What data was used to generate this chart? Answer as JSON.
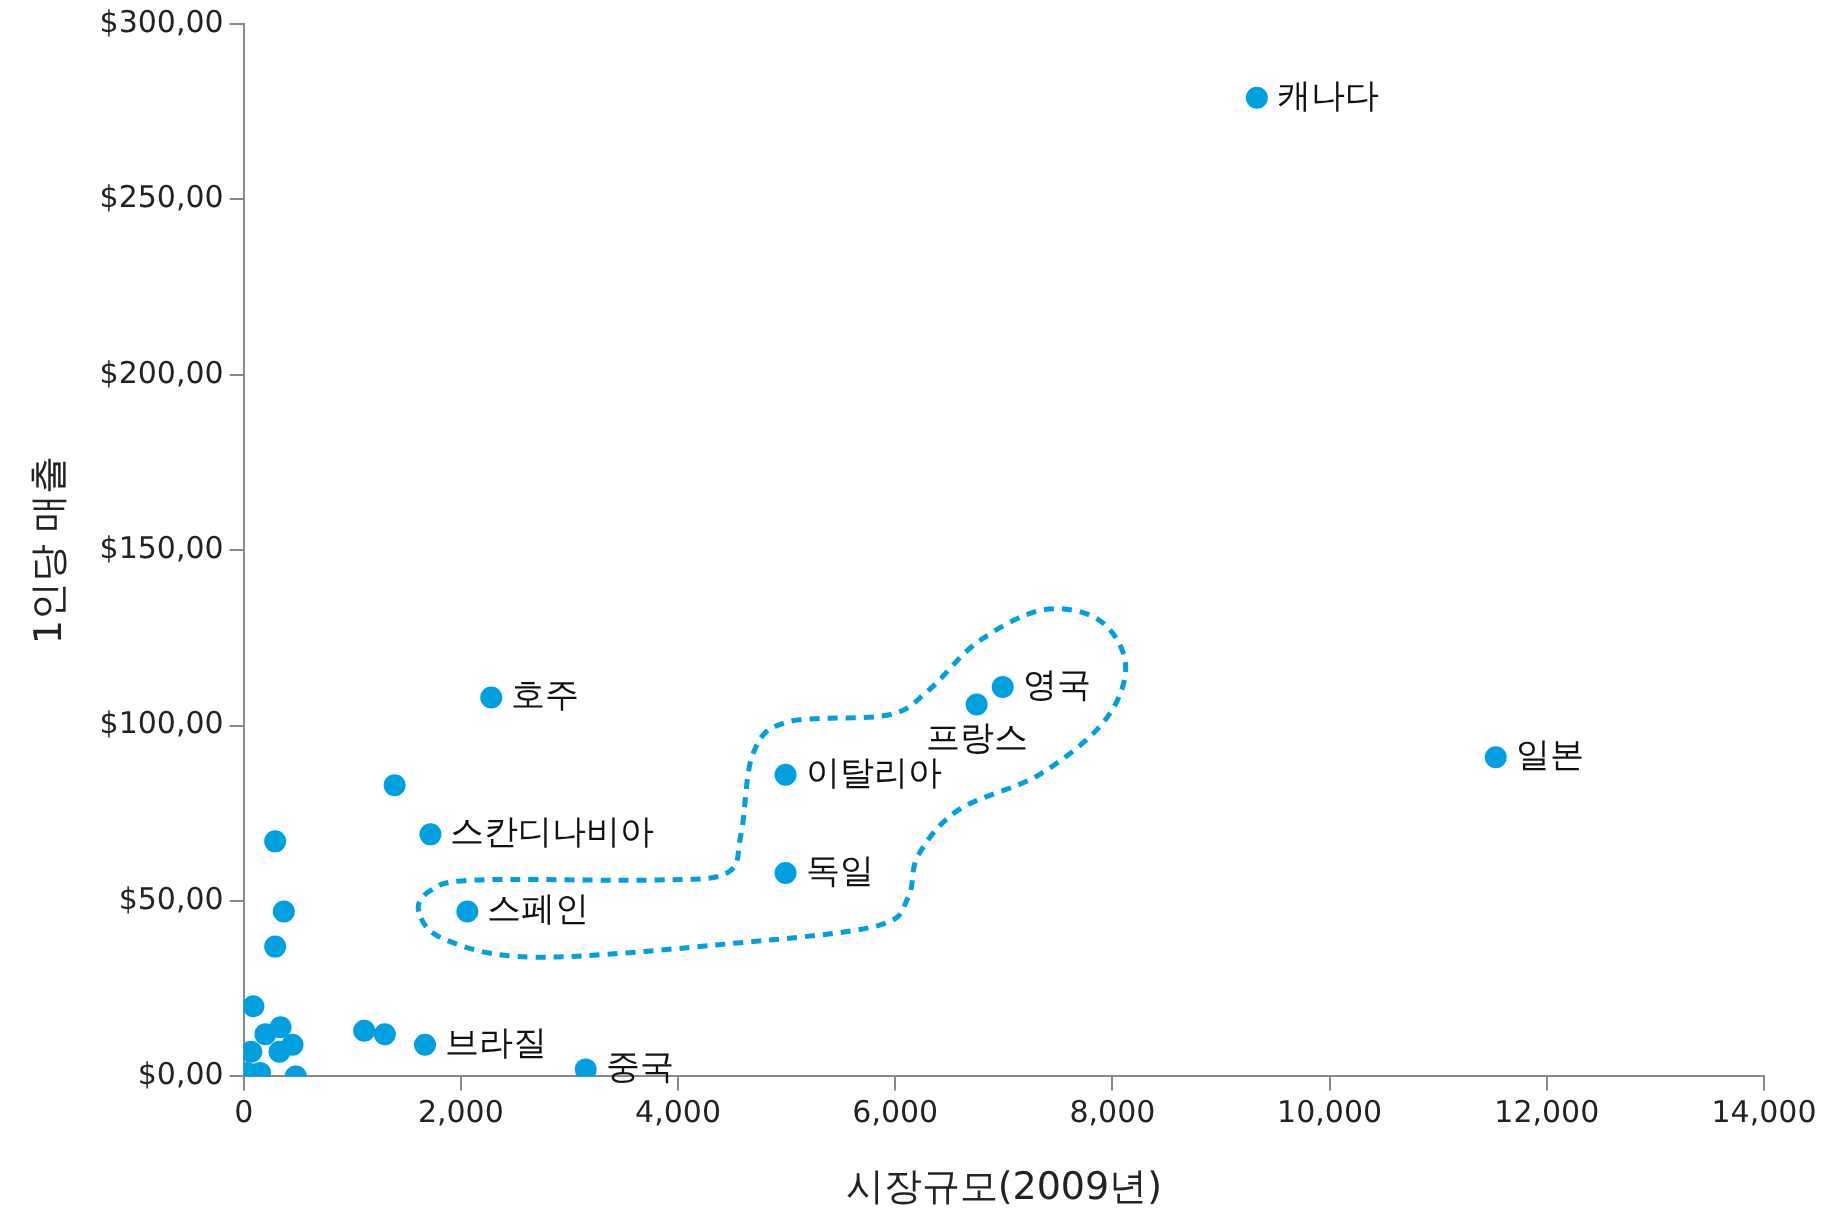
{
  "chart_data": {
    "type": "scatter",
    "xlabel": "시장규모(2009년)",
    "ylabel": "1인당 매출",
    "xlim": [
      0,
      14000
    ],
    "xticks": [
      {
        "value": 0,
        "label": "0"
      },
      {
        "value": 2000,
        "label": "2,000"
      },
      {
        "value": 4000,
        "label": "4,000"
      },
      {
        "value": 6000,
        "label": "6,000"
      },
      {
        "value": 8000,
        "label": "8,000"
      },
      {
        "value": 10000,
        "label": "10,000"
      },
      {
        "value": 12000,
        "label": "12,000"
      },
      {
        "value": 14000,
        "label": "14,000"
      }
    ],
    "ylim": [
      0,
      300
    ],
    "yticks": [
      {
        "value": 0,
        "label": "$0,00"
      },
      {
        "value": 50,
        "label": "$50,00"
      },
      {
        "value": 100,
        "label": "$100,00"
      },
      {
        "value": 150,
        "label": "$150,00"
      },
      {
        "value": 200,
        "label": "$200,00"
      },
      {
        "value": 250,
        "label": "$250,00"
      },
      {
        "value": 300,
        "label": "$300,00"
      }
    ],
    "marker": "circle",
    "legend": false,
    "series": [
      {
        "color": "#00a0e0",
        "x": [
          9330,
          11530,
          6990,
          6750,
          4990,
          4990,
          2280,
          1390,
          1720,
          2060,
          1670,
          3150,
          1110,
          1300,
          290,
          370,
          290,
          90,
          340,
          200,
          450,
          70,
          330,
          30,
          150,
          480
        ],
        "values": [
          279,
          91,
          111,
          106,
          86,
          58,
          108,
          83,
          69,
          47,
          9,
          2,
          13,
          12,
          67,
          47,
          37,
          20,
          14,
          12,
          9,
          7,
          7,
          1,
          1,
          0
        ]
      }
    ],
    "annotations": [
      {
        "text": "캐나다",
        "x": 9330,
        "y": 279
      },
      {
        "text": "일본",
        "x": 11530,
        "y": 91
      },
      {
        "text": "영국",
        "x": 6990,
        "y": 111
      },
      {
        "text": "프랑스",
        "x": 6750,
        "y": 106
      },
      {
        "text": "이탈리아",
        "x": 4990,
        "y": 86
      },
      {
        "text": "독일",
        "x": 4990,
        "y": 58
      },
      {
        "text": "호주",
        "x": 2280,
        "y": 108
      },
      {
        "text": "스칸디나비아",
        "x": 1720,
        "y": 69
      },
      {
        "text": "스페인",
        "x": 2060,
        "y": 47
      },
      {
        "text": "브라질",
        "x": 1670,
        "y": 9
      },
      {
        "text": "중국",
        "x": 3150,
        "y": 2
      }
    ]
  }
}
